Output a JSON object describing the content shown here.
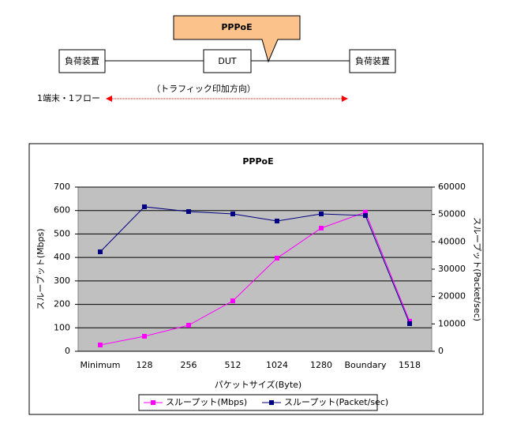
{
  "diagram": {
    "callout": "PPPoE",
    "left_device": "負荷装置",
    "dut": "DUT",
    "right_device": "負荷装置",
    "direction": "（トラフィック印加方向）",
    "flow": "1端末・1フロー"
  },
  "chart_data": {
    "type": "line",
    "title": "PPPoE",
    "x_label": "パケットサイズ(Byte)",
    "y_label": "スループット(Mbps)",
    "y2_label": "スループット(Packet/sec)",
    "categories": [
      "Minimum",
      "128",
      "256",
      "512",
      "1024",
      "1280",
      "Boundary",
      "1518"
    ],
    "series": [
      {
        "name": "スループット(Mbps)",
        "color": "#ff00ff",
        "values": [
          27,
          64,
          111,
          215,
          397,
          525,
          593,
          128
        ]
      },
      {
        "name": "スループット(Packet/sec)",
        "color": "#000080",
        "axis": "y2",
        "values": [
          36350,
          52800,
          51060,
          50200,
          47600,
          50200,
          49600,
          10100
        ]
      }
    ],
    "ylim": [
      0,
      700
    ],
    "yticks": [
      0,
      100,
      200,
      300,
      400,
      500,
      600,
      700
    ],
    "y2lim": [
      0,
      60000
    ],
    "y2ticks": [
      0,
      10000,
      20000,
      30000,
      40000,
      50000,
      60000
    ],
    "grid": true,
    "plot_background": "#c0c0c0",
    "legend": "bottom"
  }
}
